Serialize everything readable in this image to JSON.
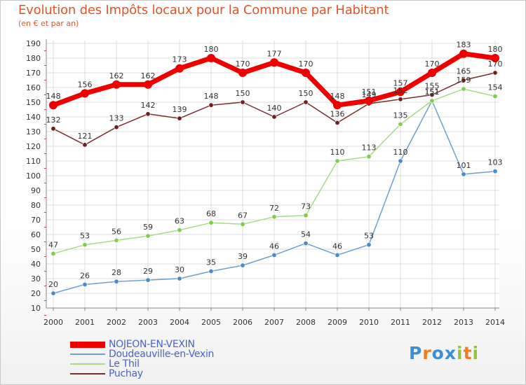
{
  "header": {
    "title": "Evolution des Impôts locaux pour la Commune par Habitant",
    "subtitle": "(en € et par an)"
  },
  "logo": {
    "letters": [
      "P",
      "r",
      "o",
      "x",
      "i",
      "t",
      "i"
    ],
    "letter_colors": [
      "#3a8fd6",
      "#ef7d22",
      "#3a8fd6",
      "#3a8fd6",
      "#8cc63f",
      "#ef7d22",
      "#8cc63f"
    ]
  },
  "chart_data": {
    "type": "line",
    "title": "Evolution des Impôts locaux pour la Commune par Habitant",
    "subtitle": "(en € et par an)",
    "xlabel": "",
    "ylabel": "",
    "categories": [
      "2000",
      "2001",
      "2002",
      "2003",
      "2004",
      "2005",
      "2006",
      "2007",
      "2008",
      "2009",
      "2010",
      "2011",
      "2012",
      "2013",
      "2014"
    ],
    "ylim": [
      10,
      190
    ],
    "y_ticks": [
      10,
      20,
      30,
      40,
      50,
      60,
      70,
      80,
      90,
      100,
      110,
      120,
      130,
      140,
      150,
      160,
      170,
      180,
      190
    ],
    "grid": true,
    "legend_position": "bottom-left",
    "series": [
      {
        "name": "NOJEON-EN-VEXIN",
        "color": "#ee0000",
        "emphasis": true,
        "values": [
          148,
          156,
          162,
          162,
          173,
          180,
          170,
          177,
          170,
          148,
          151,
          157,
          170,
          183,
          180
        ],
        "labels": [
          "148",
          "156",
          "162",
          "162",
          "173",
          "180",
          "170",
          "177",
          "170",
          "148",
          "151",
          "157",
          "170",
          "183",
          "180"
        ]
      },
      {
        "name": "Doudeauville-en-Vexin",
        "color": "#6e9fd1",
        "marker": "#4a8ac9",
        "values": [
          20,
          26,
          28,
          29,
          30,
          35,
          39,
          46,
          54,
          46,
          53,
          110,
          151,
          101,
          103
        ],
        "labels": [
          "20",
          "26",
          "28",
          "29",
          "30",
          "35",
          "39",
          "46",
          "54",
          "46",
          "53",
          "110",
          "151",
          "101",
          "103"
        ]
      },
      {
        "name": "Le Thil",
        "color": "#a6dc86",
        "marker": "#80cc4c",
        "values": [
          47,
          53,
          56,
          59,
          63,
          68,
          67,
          72,
          73,
          110,
          113,
          135,
          151,
          159,
          154
        ],
        "labels": [
          "47",
          "53",
          "56",
          "59",
          "63",
          "68",
          "67",
          "72",
          "73",
          "110",
          "113",
          "135",
          "151",
          "159",
          "154"
        ]
      },
      {
        "name": "Puchay",
        "color": "#7a2e2e",
        "marker": "#6e1f1f",
        "values": [
          132,
          121,
          133,
          142,
          139,
          148,
          150,
          140,
          150,
          136,
          149,
          152,
          155,
          165,
          170
        ],
        "labels": [
          "132",
          "121",
          "133",
          "142",
          "139",
          "148",
          "150",
          "140",
          "150",
          "136",
          "149",
          "152",
          "155",
          "165",
          "170"
        ]
      }
    ]
  }
}
